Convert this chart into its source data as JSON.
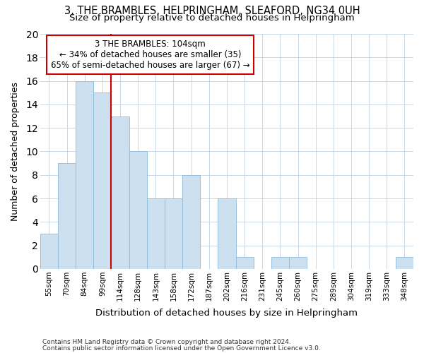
{
  "title1": "3, THE BRAMBLES, HELPRINGHAM, SLEAFORD, NG34 0UH",
  "title2": "Size of property relative to detached houses in Helpringham",
  "xlabel": "Distribution of detached houses by size in Helpringham",
  "ylabel": "Number of detached properties",
  "categories": [
    "55sqm",
    "70sqm",
    "84sqm",
    "99sqm",
    "114sqm",
    "128sqm",
    "143sqm",
    "158sqm",
    "172sqm",
    "187sqm",
    "202sqm",
    "216sqm",
    "231sqm",
    "245sqm",
    "260sqm",
    "275sqm",
    "289sqm",
    "304sqm",
    "319sqm",
    "333sqm",
    "348sqm"
  ],
  "values": [
    3,
    9,
    16,
    15,
    13,
    10,
    6,
    6,
    8,
    0,
    6,
    1,
    0,
    1,
    1,
    0,
    0,
    0,
    0,
    0,
    1
  ],
  "bar_color": "#cce0f0",
  "bar_edge_color": "#8bbcda",
  "grid_color": "#c8d8e8",
  "background_color": "#ffffff",
  "annotation_text": "3 THE BRAMBLES: 104sqm\n← 34% of detached houses are smaller (35)\n65% of semi-detached houses are larger (67) →",
  "annotation_box_color": "#ffffff",
  "annotation_box_edge_color": "#cc0000",
  "vline_x_index": 3.5,
  "vline_color": "#cc0000",
  "ylim": [
    0,
    20
  ],
  "yticks": [
    0,
    2,
    4,
    6,
    8,
    10,
    12,
    14,
    16,
    18,
    20
  ],
  "footer1": "Contains HM Land Registry data © Crown copyright and database right 2024.",
  "footer2": "Contains public sector information licensed under the Open Government Licence v3.0."
}
